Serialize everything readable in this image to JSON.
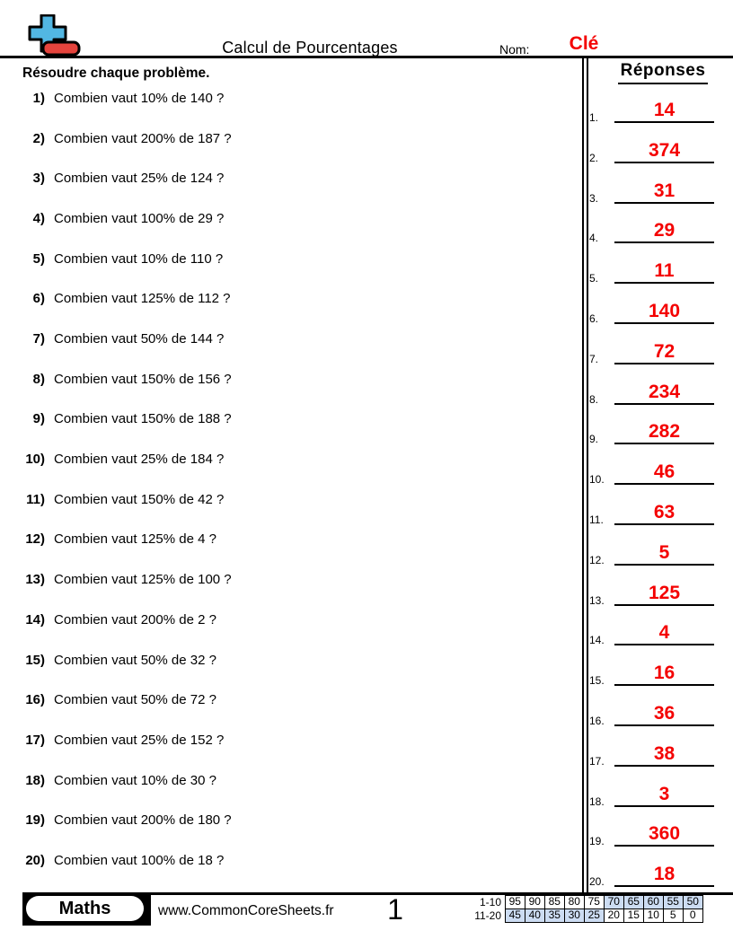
{
  "header": {
    "title": "Calcul de Pourcentages",
    "name_label": "Nom:",
    "name_value": "Clé"
  },
  "main": {
    "instructions": "Résoudre chaque problème.",
    "answers_title": "Réponses",
    "questions": [
      {
        "num": "1)",
        "text": "Combien vaut 10% de 140 ?"
      },
      {
        "num": "2)",
        "text": "Combien vaut 200% de 187 ?"
      },
      {
        "num": "3)",
        "text": "Combien vaut 25% de 124 ?"
      },
      {
        "num": "4)",
        "text": "Combien vaut 100% de 29 ?"
      },
      {
        "num": "5)",
        "text": "Combien vaut 10% de 110 ?"
      },
      {
        "num": "6)",
        "text": "Combien vaut 125% de 112 ?"
      },
      {
        "num": "7)",
        "text": "Combien vaut 50% de 144 ?"
      },
      {
        "num": "8)",
        "text": "Combien vaut 150% de 156 ?"
      },
      {
        "num": "9)",
        "text": "Combien vaut 150% de 188 ?"
      },
      {
        "num": "10)",
        "text": "Combien vaut 25% de 184 ?"
      },
      {
        "num": "11)",
        "text": "Combien vaut 150% de 42 ?"
      },
      {
        "num": "12)",
        "text": "Combien vaut 125% de 4 ?"
      },
      {
        "num": "13)",
        "text": "Combien vaut 125% de 100 ?"
      },
      {
        "num": "14)",
        "text": "Combien vaut 200% de 2 ?"
      },
      {
        "num": "15)",
        "text": "Combien vaut 50% de 32 ?"
      },
      {
        "num": "16)",
        "text": "Combien vaut 50% de 72 ?"
      },
      {
        "num": "17)",
        "text": "Combien vaut 25% de 152 ?"
      },
      {
        "num": "18)",
        "text": "Combien vaut 10% de 30 ?"
      },
      {
        "num": "19)",
        "text": "Combien vaut 200% de 180 ?"
      },
      {
        "num": "20)",
        "text": "Combien vaut 100% de 18 ?"
      }
    ],
    "answers": [
      {
        "num": "1.",
        "value": "14"
      },
      {
        "num": "2.",
        "value": "374"
      },
      {
        "num": "3.",
        "value": "31"
      },
      {
        "num": "4.",
        "value": "29"
      },
      {
        "num": "5.",
        "value": "11"
      },
      {
        "num": "6.",
        "value": "140"
      },
      {
        "num": "7.",
        "value": "72"
      },
      {
        "num": "8.",
        "value": "234"
      },
      {
        "num": "9.",
        "value": "282"
      },
      {
        "num": "10.",
        "value": "46"
      },
      {
        "num": "11.",
        "value": "63"
      },
      {
        "num": "12.",
        "value": "5"
      },
      {
        "num": "13.",
        "value": "125"
      },
      {
        "num": "14.",
        "value": "4"
      },
      {
        "num": "15.",
        "value": "16"
      },
      {
        "num": "16.",
        "value": "36"
      },
      {
        "num": "17.",
        "value": "38"
      },
      {
        "num": "18.",
        "value": "3"
      },
      {
        "num": "19.",
        "value": "360"
      },
      {
        "num": "20.",
        "value": "18"
      }
    ]
  },
  "footer": {
    "badge_label": "Maths",
    "website": "www.CommonCoreSheets.fr",
    "page_number": "1",
    "score_table": [
      {
        "label": "1-10",
        "cells": [
          "95",
          "90",
          "85",
          "80",
          "75",
          "70",
          "65",
          "60",
          "55",
          "50"
        ],
        "highlighted": [
          false,
          false,
          false,
          false,
          false,
          true,
          true,
          true,
          true,
          true
        ]
      },
      {
        "label": "11-20",
        "cells": [
          "45",
          "40",
          "35",
          "30",
          "25",
          "20",
          "15",
          "10",
          "5",
          "0"
        ],
        "highlighted": [
          true,
          true,
          true,
          true,
          true,
          false,
          false,
          false,
          false,
          false
        ]
      }
    ]
  },
  "icons": {
    "logo": "plus-minus-logo"
  },
  "colors": {
    "accent_red": "#f40000",
    "table_highlight_blue": "#ccdcf2",
    "logo_blue": "#52b7e3",
    "logo_red": "#e5443d"
  }
}
